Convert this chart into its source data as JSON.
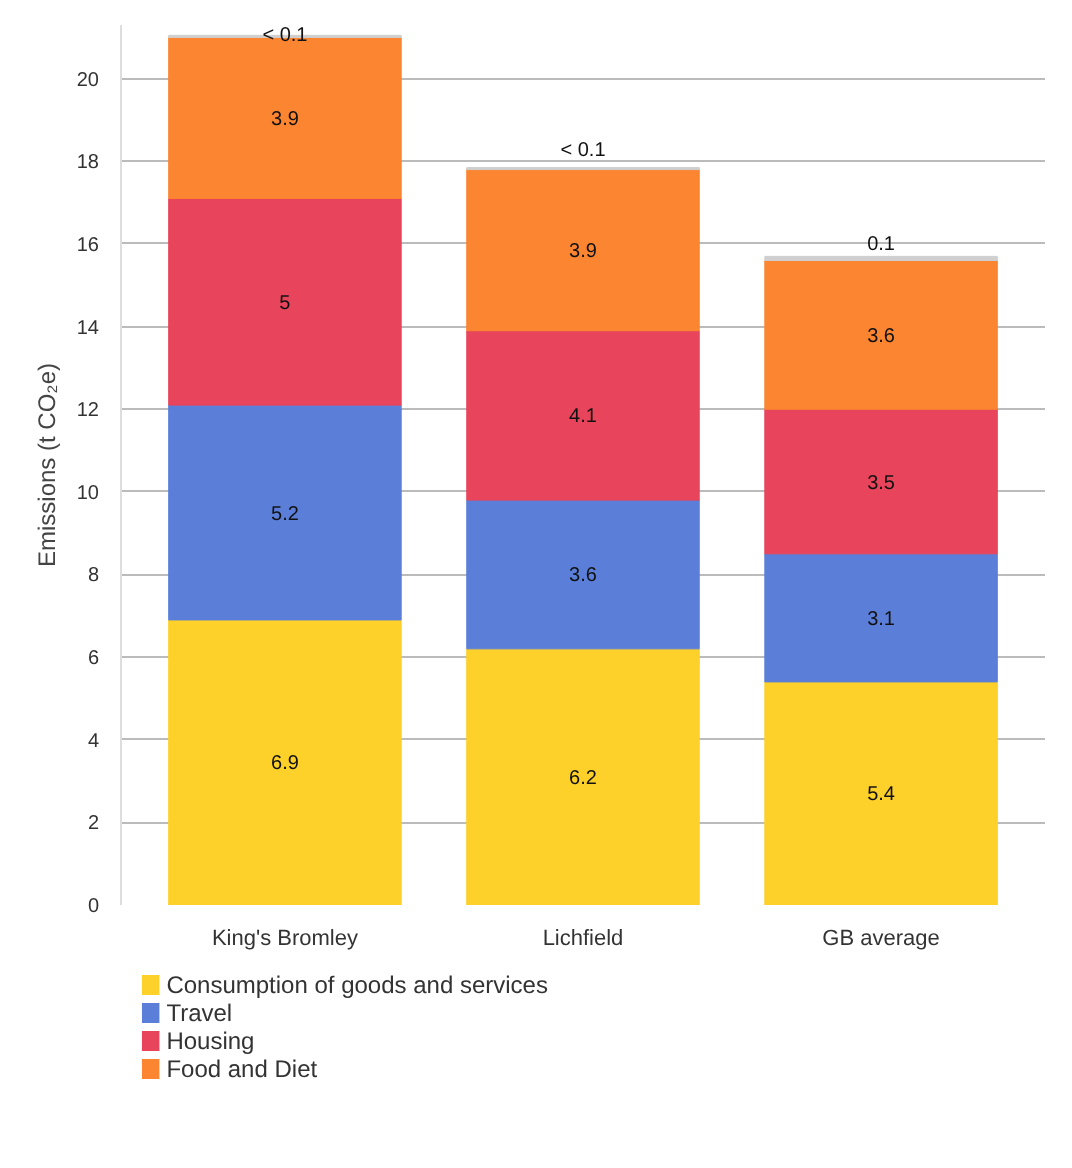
{
  "chart_data": {
    "type": "bar",
    "stacked": true,
    "ylabel": "Emissions (t CO₂e)",
    "categories": [
      "King's Bromley",
      "Lichfield",
      "GB average"
    ],
    "series": [
      {
        "name": "Consumption of goods and services",
        "color": "#fdd02a",
        "values": [
          6.9,
          6.2,
          5.4
        ],
        "value_labels": [
          "6.9",
          "6.2",
          "5.4"
        ]
      },
      {
        "name": "Travel",
        "color": "#5b7fd9",
        "values": [
          5.2,
          3.6,
          3.1
        ],
        "value_labels": [
          "5.2",
          "3.6",
          "3.1"
        ]
      },
      {
        "name": "Housing",
        "color": "#e8445b",
        "values": [
          5,
          4.1,
          3.5
        ],
        "value_labels": [
          "5",
          "4.1",
          "3.5"
        ]
      },
      {
        "name": "Food and Diet",
        "color": "#fb8530",
        "values": [
          3.9,
          3.9,
          3.6
        ],
        "value_labels": [
          "3.9",
          "3.9",
          "3.6"
        ]
      },
      {
        "color": "#cfcfcf",
        "values": [
          0.05,
          0.05,
          0.1
        ],
        "value_labels": [
          "< 0.1",
          "< 0.1",
          "0.1"
        ]
      }
    ],
    "ylim": [
      0,
      21.3
    ],
    "yticks": [
      0,
      2,
      4,
      6,
      8,
      10,
      12,
      14,
      16,
      18,
      20
    ],
    "grid": "y",
    "legend": "bottom"
  }
}
